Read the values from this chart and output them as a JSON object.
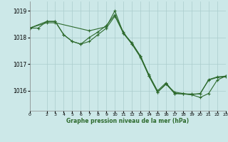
{
  "title": "Graphe pression niveau de la mer (hPa)",
  "bg_color": "#cce8e8",
  "grid_color": "#aacccc",
  "line_color": "#2d6a2d",
  "xlim": [
    0,
    23
  ],
  "ylim": [
    1015.25,
    1019.35
  ],
  "yticks": [
    1016,
    1017,
    1018,
    1019
  ],
  "xticks": [
    0,
    2,
    3,
    4,
    5,
    6,
    7,
    8,
    9,
    10,
    11,
    12,
    13,
    14,
    15,
    16,
    17,
    18,
    19,
    20,
    21,
    22,
    23
  ],
  "series1": [
    [
      0,
      1018.35
    ],
    [
      1,
      1018.35
    ],
    [
      2,
      1018.6
    ],
    [
      3,
      1018.6
    ],
    [
      4,
      1018.1
    ],
    [
      5,
      1017.85
    ],
    [
      6,
      1017.75
    ],
    [
      7,
      1018.0
    ],
    [
      8,
      1018.2
    ],
    [
      9,
      1018.45
    ],
    [
      10,
      1018.85
    ],
    [
      11,
      1018.2
    ],
    [
      12,
      1017.75
    ],
    [
      13,
      1017.25
    ],
    [
      14,
      1016.55
    ],
    [
      15,
      1015.95
    ],
    [
      16,
      1016.25
    ],
    [
      17,
      1015.95
    ],
    [
      18,
      1015.9
    ],
    [
      19,
      1015.85
    ],
    [
      20,
      1015.75
    ],
    [
      21,
      1015.9
    ],
    [
      22,
      1016.4
    ],
    [
      23,
      1016.55
    ]
  ],
  "series2": [
    [
      0,
      1018.35
    ],
    [
      2,
      1018.6
    ],
    [
      3,
      1018.6
    ],
    [
      4,
      1018.1
    ],
    [
      5,
      1017.85
    ],
    [
      6,
      1017.75
    ],
    [
      7,
      1017.85
    ],
    [
      8,
      1018.1
    ],
    [
      9,
      1018.35
    ],
    [
      10,
      1018.8
    ],
    [
      11,
      1018.15
    ],
    [
      12,
      1017.75
    ],
    [
      13,
      1017.3
    ],
    [
      14,
      1016.55
    ],
    [
      15,
      1015.95
    ],
    [
      16,
      1016.25
    ],
    [
      17,
      1015.9
    ],
    [
      18,
      1015.88
    ],
    [
      19,
      1015.85
    ],
    [
      20,
      1015.9
    ],
    [
      21,
      1016.4
    ],
    [
      22,
      1016.5
    ],
    [
      23,
      1016.52
    ]
  ],
  "series3": [
    [
      0,
      1018.35
    ],
    [
      2,
      1018.55
    ],
    [
      3,
      1018.55
    ],
    [
      7,
      1018.25
    ],
    [
      9,
      1018.4
    ],
    [
      10,
      1019.0
    ],
    [
      11,
      1018.15
    ],
    [
      12,
      1017.8
    ],
    [
      13,
      1017.3
    ],
    [
      14,
      1016.6
    ],
    [
      15,
      1016.0
    ],
    [
      16,
      1016.3
    ],
    [
      17,
      1015.9
    ],
    [
      18,
      1015.88
    ],
    [
      19,
      1015.88
    ],
    [
      20,
      1015.88
    ],
    [
      21,
      1016.42
    ],
    [
      22,
      1016.52
    ],
    [
      23,
      1016.55
    ]
  ]
}
